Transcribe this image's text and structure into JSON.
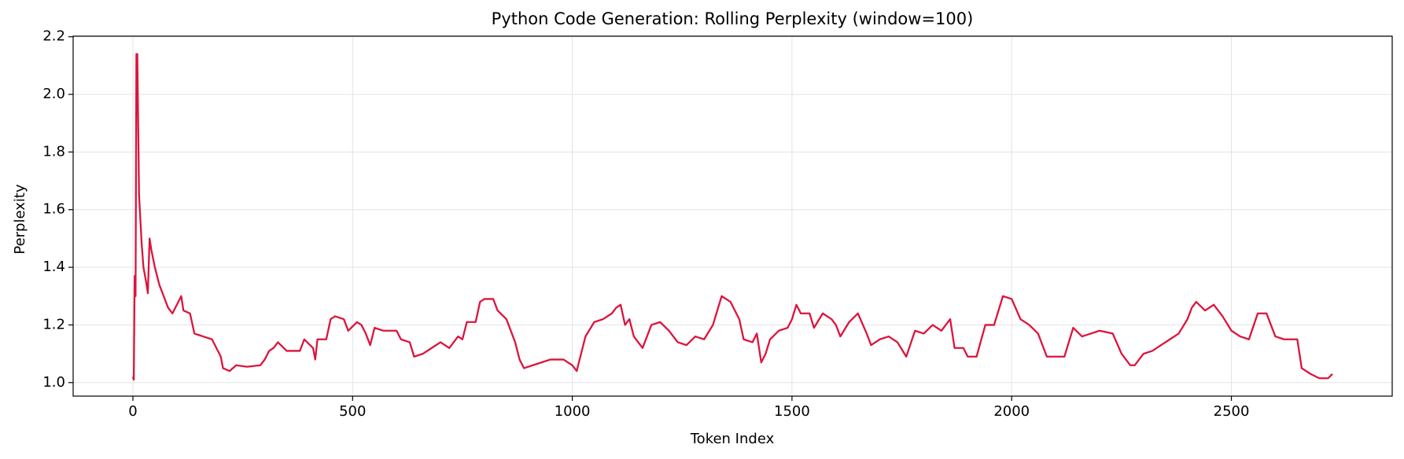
{
  "chart_data": {
    "type": "line",
    "title": "Python Code Generation: Rolling Perplexity (window=100)",
    "xlabel": "Token Index",
    "ylabel": "Perplexity",
    "xlim": [
      -136,
      2866
    ],
    "ylim": [
      0.953,
      2.202
    ],
    "xticks": [
      0,
      500,
      1000,
      1500,
      2000,
      2500
    ],
    "yticks": [
      {
        "value": 1.0,
        "label": "1.0"
      },
      1.2,
      1.4,
      1.6,
      1.8,
      {
        "value": 2.0,
        "label": "2.0"
      },
      2.2
    ],
    "grid": true,
    "x": [
      0,
      2,
      4,
      6,
      8,
      10,
      14,
      20,
      24,
      30,
      34,
      38,
      42,
      50,
      60,
      70,
      80,
      90,
      100,
      110,
      115,
      130,
      140,
      160,
      180,
      190,
      200,
      205,
      220,
      235,
      260,
      290,
      300,
      310,
      320,
      330,
      350,
      380,
      390,
      410,
      415,
      420,
      440,
      450,
      460,
      480,
      490,
      510,
      520,
      530,
      540,
      550,
      570,
      600,
      610,
      630,
      640,
      660,
      680,
      700,
      720,
      740,
      750,
      760,
      780,
      790,
      800,
      820,
      830,
      850,
      870,
      880,
      890,
      910,
      930,
      950,
      980,
      1000,
      1010,
      1020,
      1030,
      1050,
      1070,
      1090,
      1100,
      1110,
      1120,
      1130,
      1140,
      1160,
      1180,
      1200,
      1220,
      1240,
      1260,
      1280,
      1300,
      1320,
      1340,
      1360,
      1380,
      1390,
      1410,
      1420,
      1430,
      1440,
      1450,
      1470,
      1490,
      1500,
      1510,
      1520,
      1540,
      1550,
      1570,
      1590,
      1600,
      1610,
      1630,
      1650,
      1670,
      1680,
      1700,
      1720,
      1740,
      1760,
      1780,
      1800,
      1820,
      1840,
      1860,
      1870,
      1890,
      1900,
      1920,
      1940,
      1960,
      1980,
      2000,
      2020,
      2040,
      2060,
      2080,
      2100,
      2120,
      2140,
      2160,
      2180,
      2200,
      2230,
      2250,
      2270,
      2280,
      2300,
      2320,
      2340,
      2360,
      2380,
      2400,
      2410,
      2420,
      2440,
      2460,
      2480,
      2500,
      2520,
      2540,
      2560,
      2580,
      2600,
      2620,
      2650,
      2660,
      2680,
      2700,
      2720,
      2730
    ],
    "series": [
      {
        "name": "Perplexity",
        "color": "#dc143c",
        "values": [
          1.02,
          1.01,
          1.37,
          1.3,
          2.14,
          2.14,
          1.65,
          1.48,
          1.4,
          1.35,
          1.31,
          1.5,
          1.46,
          1.4,
          1.34,
          1.3,
          1.26,
          1.24,
          1.27,
          1.3,
          1.25,
          1.24,
          1.17,
          1.16,
          1.15,
          1.12,
          1.09,
          1.05,
          1.04,
          1.06,
          1.055,
          1.06,
          1.08,
          1.11,
          1.12,
          1.14,
          1.11,
          1.11,
          1.15,
          1.12,
          1.08,
          1.15,
          1.15,
          1.22,
          1.23,
          1.22,
          1.18,
          1.21,
          1.2,
          1.17,
          1.13,
          1.19,
          1.18,
          1.18,
          1.15,
          1.14,
          1.09,
          1.1,
          1.12,
          1.14,
          1.12,
          1.16,
          1.15,
          1.21,
          1.21,
          1.28,
          1.29,
          1.29,
          1.25,
          1.22,
          1.14,
          1.08,
          1.05,
          1.06,
          1.07,
          1.08,
          1.08,
          1.06,
          1.04,
          1.1,
          1.16,
          1.21,
          1.22,
          1.24,
          1.26,
          1.27,
          1.2,
          1.22,
          1.16,
          1.12,
          1.2,
          1.21,
          1.18,
          1.14,
          1.13,
          1.16,
          1.15,
          1.2,
          1.3,
          1.28,
          1.22,
          1.15,
          1.14,
          1.17,
          1.07,
          1.1,
          1.15,
          1.18,
          1.19,
          1.22,
          1.27,
          1.24,
          1.24,
          1.19,
          1.24,
          1.22,
          1.2,
          1.16,
          1.21,
          1.24,
          1.17,
          1.13,
          1.15,
          1.16,
          1.14,
          1.09,
          1.18,
          1.17,
          1.2,
          1.18,
          1.22,
          1.12,
          1.12,
          1.09,
          1.09,
          1.2,
          1.2,
          1.3,
          1.29,
          1.22,
          1.2,
          1.17,
          1.09,
          1.09,
          1.09,
          1.19,
          1.16,
          1.17,
          1.18,
          1.17,
          1.1,
          1.06,
          1.06,
          1.1,
          1.11,
          1.13,
          1.15,
          1.17,
          1.22,
          1.26,
          1.28,
          1.25,
          1.27,
          1.23,
          1.18,
          1.16,
          1.15,
          1.24,
          1.24,
          1.16,
          1.15,
          1.15,
          1.05,
          1.03,
          1.015,
          1.015,
          1.03
        ]
      }
    ]
  }
}
